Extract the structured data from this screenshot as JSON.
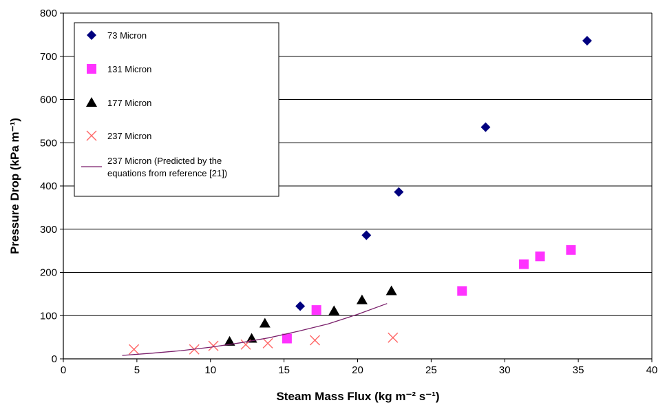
{
  "chart_data": {
    "type": "scatter",
    "title": "",
    "xlabel": "Steam Mass Flux (kg m⁻² s⁻¹)",
    "ylabel": "Pressure Drop (kPa m⁻¹)",
    "xlim": [
      0,
      40
    ],
    "ylim": [
      0,
      800
    ],
    "x_ticks": [
      0,
      5,
      10,
      15,
      20,
      25,
      30,
      35,
      40
    ],
    "y_ticks": [
      0,
      100,
      200,
      300,
      400,
      500,
      600,
      700,
      800
    ],
    "grid": "horizontal",
    "legend_position": "top-left",
    "series": [
      {
        "name": "73 Micron",
        "marker": "diamond",
        "color": "#00007f",
        "x": [
          16.1,
          20.6,
          22.8,
          28.7,
          35.6
        ],
        "y": [
          122,
          286,
          386,
          536,
          736
        ]
      },
      {
        "name": "131 Micron",
        "marker": "square",
        "color": "#ff33ff",
        "x": [
          15.2,
          17.2,
          27.1,
          31.3,
          32.4,
          34.5
        ],
        "y": [
          47,
          113,
          157,
          219,
          237,
          252
        ]
      },
      {
        "name": "177 Micron",
        "marker": "triangle",
        "color": "#000000",
        "x": [
          11.3,
          12.8,
          13.7,
          18.4,
          20.3,
          22.3
        ],
        "y": [
          40,
          47,
          82,
          111,
          136,
          157
        ]
      },
      {
        "name": "237 Micron",
        "marker": "x",
        "color": "#ff6666",
        "x": [
          4.8,
          8.9,
          10.2,
          12.4,
          13.9,
          17.1,
          22.4
        ],
        "y": [
          22,
          22,
          30,
          33,
          36,
          43,
          49
        ]
      },
      {
        "name": "237 Micron (Predicted by the equations from reference [21])",
        "legend_lines": [
          "237 Micron (Predicted by the",
          "equations from reference [21])"
        ],
        "marker": "line",
        "color": "#7a1f6b",
        "x": [
          4,
          6,
          8,
          10,
          12,
          14,
          16,
          18,
          20,
          22
        ],
        "y": [
          8,
          13,
          19,
          27,
          37,
          49,
          64,
          81,
          103,
          128
        ]
      }
    ]
  }
}
